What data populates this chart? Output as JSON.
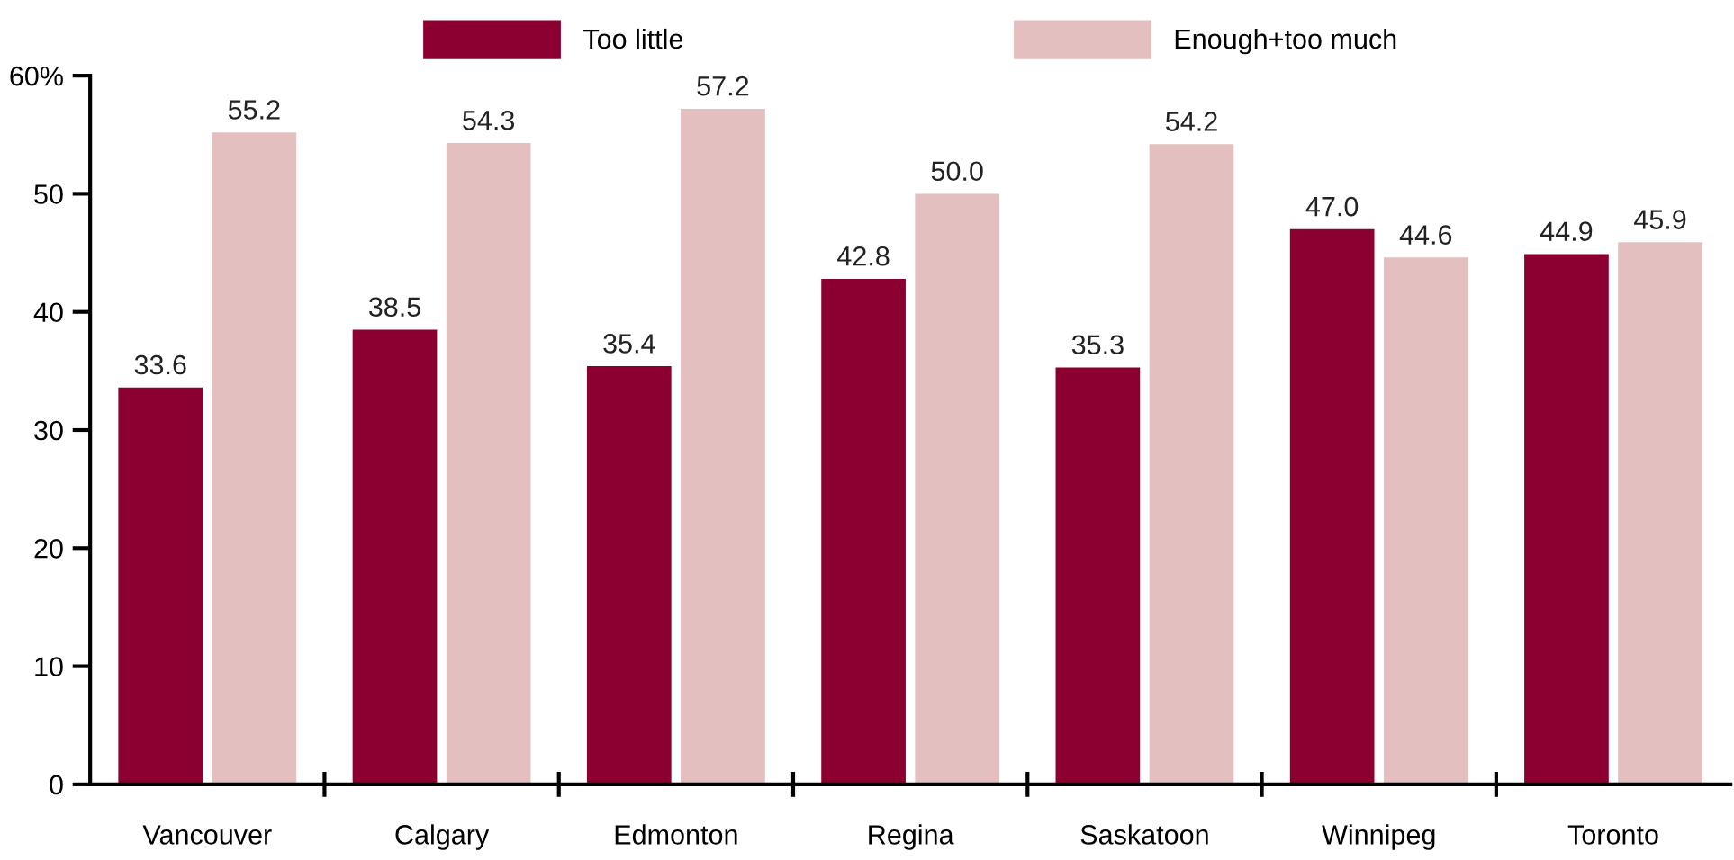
{
  "chart_data": {
    "type": "bar",
    "categories": [
      "Vancouver",
      "Calgary",
      "Edmonton",
      "Regina",
      "Saskatoon",
      "Winnipeg",
      "Toronto"
    ],
    "series": [
      {
        "name": "Too little",
        "color": "#8b0030",
        "values": [
          33.6,
          38.5,
          35.4,
          42.8,
          35.3,
          47.0,
          44.9
        ],
        "value_labels": [
          "33.6",
          "38.5",
          "35.4",
          "42.8",
          "35.3",
          "47.0",
          "44.9"
        ]
      },
      {
        "name": "Enough+too much",
        "color": "#e3bfc0",
        "values": [
          55.2,
          54.3,
          57.2,
          50.0,
          54.2,
          44.6,
          45.9
        ],
        "value_labels": [
          "55.2",
          "54.3",
          "57.2",
          "50.0",
          "54.2",
          "44.6",
          "45.9"
        ]
      }
    ],
    "ylim": [
      0,
      60
    ],
    "yticks": [
      0,
      10,
      20,
      30,
      40,
      50,
      {
        "value": 60,
        "label": "60%"
      }
    ],
    "grid": false,
    "legend": "top"
  }
}
